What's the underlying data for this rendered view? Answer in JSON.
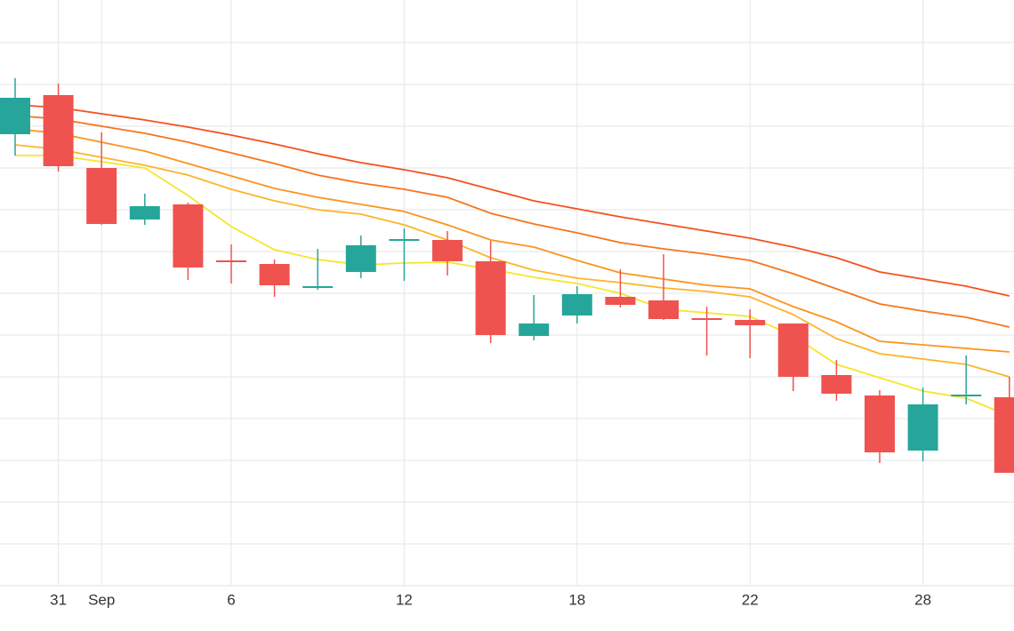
{
  "chart_data": {
    "type": "candlestick",
    "categories": [
      null,
      "31",
      "Sep",
      null,
      null,
      "6",
      null,
      null,
      null,
      "12",
      null,
      null,
      null,
      "18",
      null,
      null,
      null,
      "22",
      null,
      null,
      null,
      "28",
      null,
      null
    ],
    "open": [
      508,
      552,
      470,
      412,
      429,
      366,
      362,
      335,
      353,
      388,
      389,
      365,
      281,
      304,
      325,
      321,
      301,
      299,
      295,
      237,
      214,
      152,
      213,
      212
    ],
    "high": [
      571,
      565,
      510,
      441,
      431,
      384,
      367,
      379,
      394,
      402,
      399,
      388,
      327,
      337,
      356,
      373,
      314,
      311,
      295,
      254,
      220,
      223,
      259,
      235
    ],
    "low": [
      484,
      466,
      406,
      406,
      344,
      340,
      325,
      333,
      346,
      343,
      349,
      273,
      276,
      295,
      313,
      299,
      259,
      256,
      219,
      208,
      138,
      140,
      204,
      127
    ],
    "close": [
      549,
      472,
      407,
      427,
      358,
      364,
      338,
      337,
      383,
      390,
      365,
      282,
      295,
      328,
      316,
      300,
      299,
      293,
      235,
      216,
      150,
      204,
      215,
      127
    ],
    "up_color": "#26a69a",
    "down_color": "#ef5350",
    "lines": [
      {
        "color": "#f4511e",
        "values": [
          541,
          538,
          531,
          524,
          516,
          507,
          497,
          486,
          476,
          468,
          459,
          446,
          433,
          424,
          415,
          407,
          399,
          391,
          381,
          369,
          353,
          345,
          337,
          326
        ]
      },
      {
        "color": "#f7741c",
        "values": [
          529,
          525,
          517,
          509,
          499,
          487,
          475,
          462,
          453,
          446,
          437,
          419,
          407,
          397,
          386,
          379,
          373,
          366,
          351,
          334,
          317,
          309,
          302,
          291
        ]
      },
      {
        "color": "#fb941e",
        "values": [
          514,
          509,
          499,
          489,
          475,
          461,
          447,
          437,
          429,
          421,
          406,
          389,
          381,
          366,
          352,
          345,
          338,
          334,
          314,
          297,
          275,
          271,
          267,
          263
        ]
      },
      {
        "color": "#fdb42a",
        "values": [
          496,
          491,
          482,
          473,
          462,
          446,
          433,
          423,
          418,
          406,
          389,
          369,
          355,
          346,
          341,
          335,
          331,
          325,
          305,
          278,
          261,
          255,
          249,
          235
        ]
      },
      {
        "color": "#f5e62a",
        "values": [
          484,
          484,
          477,
          470,
          439,
          404,
          378,
          367,
          361,
          363,
          364,
          356,
          347,
          340,
          329,
          311,
          307,
          303,
          281,
          249,
          234,
          219,
          211,
          191
        ]
      }
    ],
    "ylim": [
      0,
      659
    ],
    "yticks": [
      47,
      94,
      141,
      188,
      235,
      282,
      329,
      376,
      423,
      470,
      517,
      564,
      611
    ],
    "grid": true
  }
}
